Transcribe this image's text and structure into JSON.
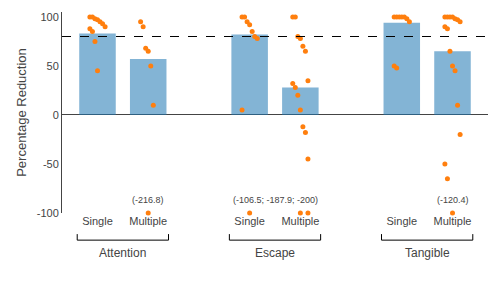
{
  "chart_data": {
    "type": "bar",
    "ylabel": "Percentage Reduction",
    "categories": [
      "Single",
      "Multiple",
      "Single",
      "Multiple",
      "Single",
      "Multiple"
    ],
    "groups": [
      "Attention",
      "Escape",
      "Tangible"
    ],
    "values": [
      83,
      57,
      82,
      28,
      94,
      65
    ],
    "points": [
      [
        100,
        100,
        98,
        97,
        95,
        93,
        90,
        88,
        85,
        75,
        45
      ],
      [
        95,
        90,
        68,
        65,
        50,
        10
      ],
      [
        100,
        100,
        95,
        92,
        85,
        80,
        78,
        5
      ],
      [
        100,
        100,
        80,
        78,
        70,
        65,
        35,
        32,
        28,
        20,
        5,
        -12,
        -18,
        -45
      ],
      [
        100,
        100,
        100,
        100,
        100,
        98,
        95,
        50,
        48
      ],
      [
        100,
        100,
        100,
        100,
        98,
        97,
        95,
        90,
        88,
        65,
        50,
        45,
        10,
        -20,
        -50,
        -65
      ]
    ],
    "clipped_points": [
      [],
      [
        -100
      ],
      [
        -100
      ],
      [
        -100,
        -100
      ],
      [],
      [
        -100
      ]
    ],
    "reference_line": {
      "value": 80,
      "line_style": "dashed"
    },
    "annotations": [
      {
        "text": "(-216.8)",
        "categories": [
          1
        ]
      },
      {
        "text": "(-106.5; -187.9; -200)",
        "categories": [
          2,
          3
        ]
      },
      {
        "text": "(-120.4)",
        "categories": [
          5
        ]
      }
    ],
    "ylim": [
      -100,
      105
    ],
    "yticks": [
      -100,
      -50,
      0,
      50,
      100
    ],
    "grid": false
  }
}
